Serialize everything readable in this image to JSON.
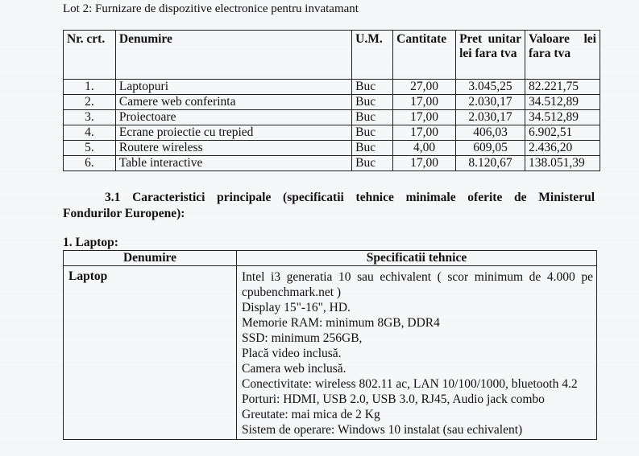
{
  "lot_title": "Lot 2: Furnizare de dispozitive electronice pentru invatamant",
  "products_table": {
    "headers": [
      "Nr. crt.",
      "Denumire",
      "U.M.",
      "Cantitate",
      "Pret unitar lei fara tva",
      "Valoare lei fara tva"
    ],
    "rows": [
      {
        "nr": "1.",
        "name": "Laptopuri",
        "um": "Buc",
        "qty": "27,00",
        "price": "3.045,25",
        "value": "82.221,75"
      },
      {
        "nr": "2.",
        "name": "Camere web conferinta",
        "um": "Buc",
        "qty": "17,00",
        "price": "2.030,17",
        "value": "34.512,89"
      },
      {
        "nr": "3.",
        "name": "Proiectoare",
        "um": "Buc",
        "qty": "17,00",
        "price": "2.030,17",
        "value": "34.512,89"
      },
      {
        "nr": "4.",
        "name": "Ecrane proiectie cu trepied",
        "um": "Buc",
        "qty": "17,00",
        "price": "406,03",
        "value": "6.902,51"
      },
      {
        "nr": "5.",
        "name": "Routere wireless",
        "um": "Buc",
        "qty": "4,00",
        "price": "609,05",
        "value": "2.436,20"
      },
      {
        "nr": "6.",
        "name": "Table interactive",
        "um": "Buc",
        "qty": "17,00",
        "price": "8.120,67",
        "value": "138.051,39"
      }
    ]
  },
  "section_heading": {
    "line1": "3.1 Caracteristici principale (specificatii tehnice minimale oferite de Ministerul",
    "line2": "Fondurilor Europene):"
  },
  "laptop_heading": "1. Laptop:",
  "spec_table": {
    "headers": [
      "Denumire",
      "Specificatii tehnice"
    ],
    "name": "Laptop",
    "specs": [
      "Intel i3 generatia 10 sau echivalent ( scor minimum de 4.000 pe cpubenchmark.net )",
      "Display 15\"-16\", HD.",
      "Memorie RAM: minimum 8GB, DDR4",
      "SSD: minimum 256GB,",
      "Placă video inclusă.",
      "Camera web inclusă.",
      "Conectivitate: wireless 802.11 ac, LAN 10/100/1000, bluetooth 4.2",
      "Porturi: HDMI, USB 2.0, USB 3.0, RJ45, Audio jack combo",
      "Greutate: mai mica de 2 Kg",
      "Sistem de operare: Windows 10 instalat (sau echivalent)"
    ]
  }
}
